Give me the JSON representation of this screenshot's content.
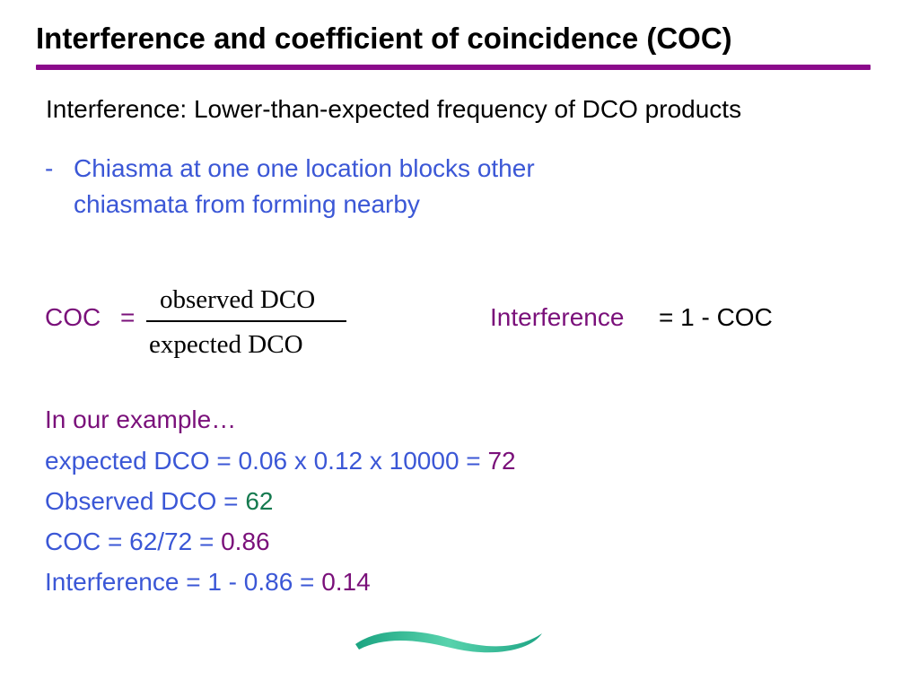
{
  "slide": {
    "title": "Interference and coefficient of coincidence (COC)",
    "definition": "Interference: Lower-than-expected frequency of DCO products",
    "bullet": {
      "marker": "-",
      "line1": "Chiasma at one one location blocks other",
      "line2": "chiasmata from forming nearby"
    },
    "formula": {
      "lhs": "COC",
      "equals": "=",
      "numerator": "observed DCO",
      "denominator": "expected DCO",
      "interference_word": "Interference",
      "interference_rest": " = 1 - COC"
    },
    "example": {
      "heading": "In our example…",
      "line1_text": "expected DCO = 0.06 x 0.12 x 10000 = ",
      "line1_value": "72",
      "line2_text": "Observed DCO = ",
      "line2_value": "62",
      "line3_text": "COC = 62/72 = ",
      "line3_value": "0.86",
      "line4_text": "Interference = 1 - 0.86 = ",
      "line4_value": "0.14"
    },
    "colors": {
      "title_rule": "#8b0a8b",
      "blue_text": "#3b57d6",
      "purple_text": "#7a107a",
      "green_text": "#157a4f",
      "swoosh": "#1fb88a"
    },
    "decoration_icon": "teal-swoosh-icon"
  }
}
